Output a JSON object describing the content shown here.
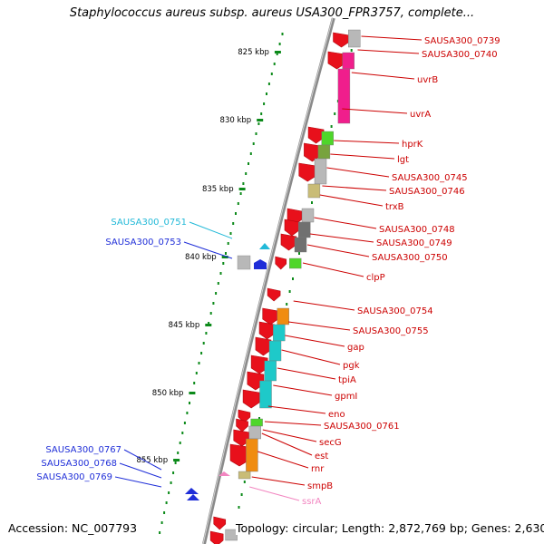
{
  "title": "Staphylococcus aureus subsp. aureus USA300_FPR3757, complete...",
  "footer": {
    "accession": "Accession: NC_007793",
    "summary": "Topology: circular; Length: 2,872,769 bp; Genes: 2,630"
  },
  "colors": {
    "red": "#e8101b",
    "dark_red": "#b0060d",
    "label_red": "#cc0000",
    "cyan_label": "#22b9d8",
    "blue": "#1f2ed8",
    "pink": "#f285c0",
    "magenta": "#f01e8c",
    "green": "#4fd62a",
    "olive": "#78a33d",
    "khaki": "#c9bc76",
    "gray": "#b8b8b8",
    "dark_gray": "#707070",
    "orange": "#f08c10",
    "teal": "#1ec9c9",
    "tick_green": "#0c8a1a"
  },
  "ruler": {
    "ticks": [
      {
        "label": "825 kbp"
      },
      {
        "label": "830 kbp"
      },
      {
        "label": "835 kbp"
      },
      {
        "label": "840 kbp"
      },
      {
        "label": "845 kbp"
      },
      {
        "label": "850 kbp"
      },
      {
        "label": "855 kbp"
      }
    ]
  },
  "gene_labels_right": [
    {
      "name": "SAUSA300_0739",
      "color": "label_red"
    },
    {
      "name": "SAUSA300_0740",
      "color": "label_red"
    },
    {
      "name": "uvrB",
      "color": "label_red"
    },
    {
      "name": "uvrA",
      "color": "label_red"
    },
    {
      "name": "hprK",
      "color": "label_red"
    },
    {
      "name": "lgt",
      "color": "label_red"
    },
    {
      "name": "SAUSA300_0745",
      "color": "label_red"
    },
    {
      "name": "SAUSA300_0746",
      "color": "label_red"
    },
    {
      "name": "trxB",
      "color": "label_red"
    },
    {
      "name": "SAUSA300_0748",
      "color": "label_red"
    },
    {
      "name": "SAUSA300_0749",
      "color": "label_red"
    },
    {
      "name": "SAUSA300_0750",
      "color": "label_red"
    },
    {
      "name": "clpP",
      "color": "label_red"
    },
    {
      "name": "SAUSA300_0754",
      "color": "label_red"
    },
    {
      "name": "SAUSA300_0755",
      "color": "label_red"
    },
    {
      "name": "gap",
      "color": "label_red"
    },
    {
      "name": "pgk",
      "color": "label_red"
    },
    {
      "name": "tpiA",
      "color": "label_red"
    },
    {
      "name": "gpmI",
      "color": "label_red"
    },
    {
      "name": "eno",
      "color": "label_red"
    },
    {
      "name": "SAUSA300_0761",
      "color": "label_red"
    },
    {
      "name": "secG",
      "color": "label_red"
    },
    {
      "name": "est",
      "color": "label_red"
    },
    {
      "name": "rnr",
      "color": "label_red"
    },
    {
      "name": "smpB",
      "color": "label_red"
    },
    {
      "name": "ssrA",
      "color": "pink"
    }
  ],
  "gene_labels_left": [
    {
      "name": "SAUSA300_0751",
      "color": "cyan_label"
    },
    {
      "name": "SAUSA300_0753",
      "color": "blue"
    },
    {
      "name": "SAUSA300_0767",
      "color": "blue"
    },
    {
      "name": "SAUSA300_0768",
      "color": "blue"
    },
    {
      "name": "SAUSA300_0769",
      "color": "blue"
    }
  ]
}
